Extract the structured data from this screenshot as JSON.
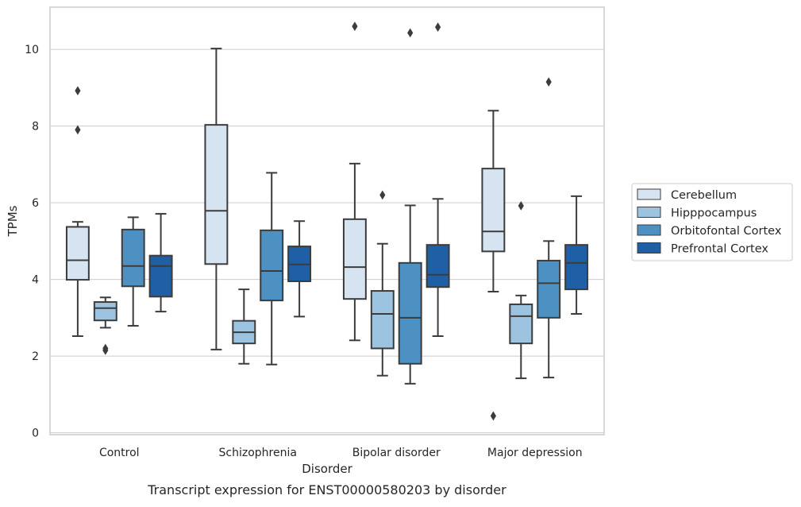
{
  "caption": "Transcript expression for ENST00000580203 by disorder",
  "colors": {
    "series": [
      "#d6e4f2",
      "#9cc4e0",
      "#4c91c2",
      "#1f5fa5"
    ],
    "grid": "#cccccc",
    "frame": "#cccccc",
    "whisker": "#3c3c3c"
  },
  "chart_data": {
    "type": "box",
    "xlabel": "Disorder",
    "ylabel": "TPMs",
    "ylim": [
      -0.05,
      11.1
    ],
    "yticks": [
      0,
      2,
      4,
      6,
      8,
      10
    ],
    "grid": "horizontal",
    "legend_position": "right",
    "categories": [
      "Control",
      "Schizophrenia",
      "Bipolar disorder",
      "Major depression"
    ],
    "series": [
      {
        "name": "Cerebellum",
        "boxes": [
          {
            "whislo": 2.52,
            "q1": 3.99,
            "med": 4.5,
            "q3": 5.37,
            "whishi": 5.5,
            "fliers": [
              8.92,
              7.9
            ]
          },
          {
            "whislo": 2.17,
            "q1": 4.4,
            "med": 5.79,
            "q3": 8.03,
            "whishi": 10.02,
            "fliers": []
          },
          {
            "whislo": 2.41,
            "q1": 3.49,
            "med": 4.32,
            "q3": 5.57,
            "whishi": 7.02,
            "fliers": [
              10.6
            ]
          },
          {
            "whislo": 3.68,
            "q1": 4.73,
            "med": 5.25,
            "q3": 6.89,
            "whishi": 8.4,
            "fliers": [
              0.44
            ]
          }
        ]
      },
      {
        "name": "Hipppocampus",
        "boxes": [
          {
            "whislo": 2.74,
            "q1": 2.93,
            "med": 3.25,
            "q3": 3.41,
            "whishi": 3.53,
            "fliers": [
              2.2,
              2.15
            ]
          },
          {
            "whislo": 1.8,
            "q1": 2.33,
            "med": 2.62,
            "q3": 2.92,
            "whishi": 3.74,
            "fliers": []
          },
          {
            "whislo": 1.49,
            "q1": 2.2,
            "med": 3.1,
            "q3": 3.7,
            "whishi": 4.93,
            "fliers": [
              6.2
            ]
          },
          {
            "whislo": 1.42,
            "q1": 2.33,
            "med": 3.04,
            "q3": 3.35,
            "whishi": 3.58,
            "fliers": [
              5.92
            ]
          }
        ]
      },
      {
        "name": "Orbitofontal Cortex",
        "boxes": [
          {
            "whislo": 2.79,
            "q1": 3.82,
            "med": 4.35,
            "q3": 5.3,
            "whishi": 5.62,
            "fliers": []
          },
          {
            "whislo": 1.78,
            "q1": 3.45,
            "med": 4.22,
            "q3": 5.28,
            "whishi": 6.78,
            "fliers": []
          },
          {
            "whislo": 1.28,
            "q1": 1.8,
            "med": 3.0,
            "q3": 4.43,
            "whishi": 5.93,
            "fliers": [
              10.43
            ]
          },
          {
            "whislo": 1.44,
            "q1": 3.0,
            "med": 3.9,
            "q3": 4.49,
            "whishi": 5.0,
            "fliers": [
              9.15
            ]
          }
        ]
      },
      {
        "name": "Prefrontal Cortex",
        "boxes": [
          {
            "whislo": 3.16,
            "q1": 3.55,
            "med": 4.35,
            "q3": 4.62,
            "whishi": 5.71,
            "fliers": []
          },
          {
            "whislo": 3.03,
            "q1": 3.95,
            "med": 4.39,
            "q3": 4.86,
            "whishi": 5.52,
            "fliers": []
          },
          {
            "whislo": 2.52,
            "q1": 3.8,
            "med": 4.12,
            "q3": 4.9,
            "whishi": 6.1,
            "fliers": [
              10.58
            ]
          },
          {
            "whislo": 3.1,
            "q1": 3.74,
            "med": 4.43,
            "q3": 4.9,
            "whishi": 6.17,
            "fliers": []
          }
        ]
      }
    ]
  }
}
